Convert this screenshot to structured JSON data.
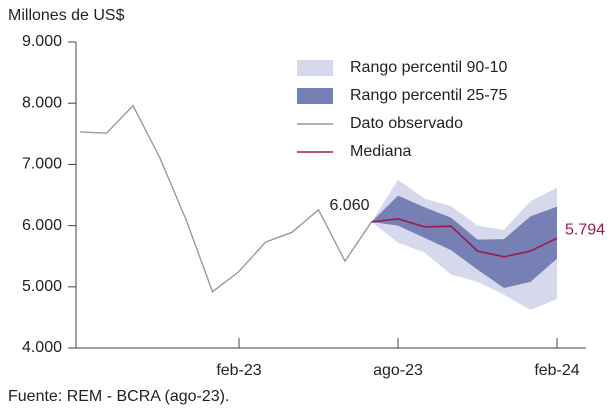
{
  "chart_data": {
    "type": "line",
    "y_label": "Millones de US$",
    "source": "Fuente: REM - BCRA (ago-23).",
    "categories": [
      null,
      null,
      null,
      null,
      null,
      null,
      "feb-23",
      null,
      null,
      null,
      null,
      null,
      "ago-23",
      null,
      null,
      null,
      null,
      null,
      "feb-24"
    ],
    "ylim": [
      4000,
      9000
    ],
    "yticks": [
      {
        "value": 4000,
        "label": "4.000"
      },
      {
        "value": 5000,
        "label": "5.000"
      },
      {
        "value": 6000,
        "label": "6.000"
      },
      {
        "value": 7000,
        "label": "7.000"
      },
      {
        "value": 8000,
        "label": "8.000"
      },
      {
        "value": 9000,
        "label": "9.000"
      }
    ],
    "series": [
      {
        "name": "Rango percentil 90-10",
        "color": "#d6d9ec",
        "high": [
          null,
          null,
          null,
          null,
          null,
          null,
          null,
          null,
          null,
          null,
          null,
          6060,
          6750,
          6440,
          6320,
          6000,
          5930,
          6400,
          6620
        ],
        "low": [
          null,
          null,
          null,
          null,
          null,
          null,
          null,
          null,
          null,
          null,
          null,
          6060,
          5720,
          5560,
          5200,
          5080,
          4870,
          4620,
          4800
        ]
      },
      {
        "name": "Rango percentil 25-75",
        "color": "#7680b5",
        "high": [
          null,
          null,
          null,
          null,
          null,
          null,
          null,
          null,
          null,
          null,
          null,
          6060,
          6490,
          6300,
          6130,
          5770,
          5780,
          6150,
          6310
        ],
        "low": [
          null,
          null,
          null,
          null,
          null,
          null,
          null,
          null,
          null,
          null,
          null,
          6060,
          6000,
          5800,
          5600,
          5280,
          4980,
          5080,
          5460
        ]
      },
      {
        "name": "Dato observado",
        "color": "#9a9a9a",
        "values": [
          7530,
          7510,
          7960,
          7120,
          6100,
          4920,
          5250,
          5730,
          5890,
          6260,
          5420,
          6060,
          null,
          null,
          null,
          null,
          null,
          null,
          null
        ],
        "value_labels": [
          null,
          null,
          null,
          null,
          null,
          null,
          null,
          null,
          null,
          null,
          null,
          "6.060",
          null,
          null,
          null,
          null,
          null,
          null,
          null
        ]
      },
      {
        "name": "Mediana",
        "color": "#9b1b4a",
        "values": [
          null,
          null,
          null,
          null,
          null,
          null,
          null,
          null,
          null,
          null,
          null,
          6060,
          6110,
          5980,
          5990,
          5585,
          5490,
          5585,
          5794
        ],
        "value_labels": [
          null,
          null,
          null,
          null,
          null,
          null,
          null,
          null,
          null,
          null,
          null,
          null,
          null,
          null,
          null,
          null,
          null,
          null,
          "5.794"
        ]
      }
    ]
  }
}
